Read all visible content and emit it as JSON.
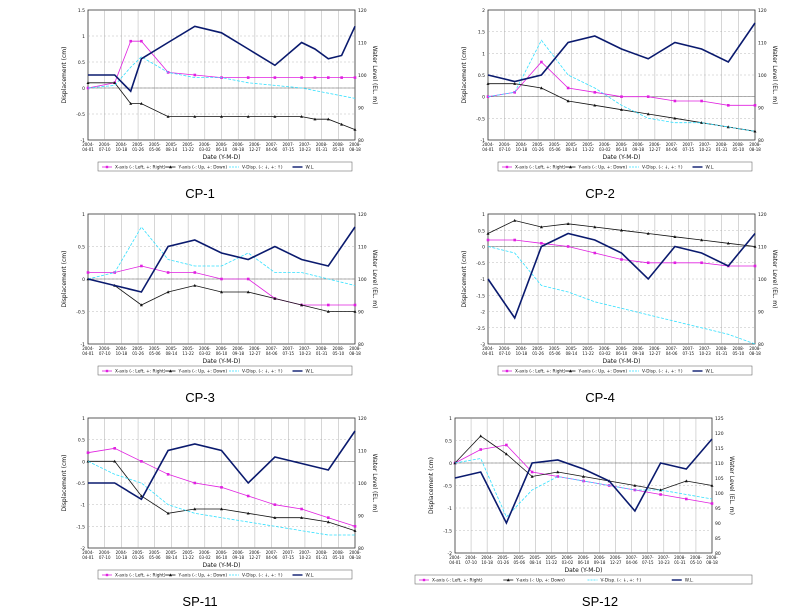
{
  "chart_data": [
    {
      "type": "line",
      "title": "CP-1",
      "xlabel": "Date (Y-M-D)",
      "ylabel": "Displacement (cm)",
      "y2label": "Water Level (EL. m)",
      "ylim": [
        -1,
        1.5
      ],
      "yticks": [
        "1.5",
        "1",
        "0.5",
        "0",
        "-0.5",
        "-1"
      ],
      "y2lim": [
        80,
        120
      ],
      "y2ticks": [
        "120",
        "110",
        "100",
        "90",
        "80"
      ],
      "x": [
        0,
        0.1,
        0.16,
        0.2,
        0.3,
        0.4,
        0.5,
        0.6,
        0.7,
        0.8,
        0.85,
        0.9,
        0.95,
        1
      ],
      "legend": [
        "X-axis (-: Left, +: Right)",
        "Y-axis (-: Up, +: Down)",
        "V-Disp. (-: ↓, +: ↑)",
        "W.L."
      ],
      "series": [
        {
          "name": "X-axis (-: Left, +: Right)",
          "axis": "left",
          "values": [
            0,
            0.1,
            0.9,
            0.9,
            0.3,
            0.25,
            0.2,
            0.2,
            0.2,
            0.2,
            0.2,
            0.2,
            0.2,
            0.2
          ]
        },
        {
          "name": "Y-axis (-: Up, +: Down)",
          "axis": "left",
          "values": [
            0.1,
            0.1,
            -0.3,
            -0.3,
            -0.55,
            -0.55,
            -0.55,
            -0.55,
            -0.55,
            -0.55,
            -0.6,
            -0.6,
            -0.7,
            -0.8
          ]
        },
        {
          "name": "V-Disp. (-: ↓, +: ↑)",
          "axis": "left",
          "values": [
            0,
            0.05,
            0.4,
            0.6,
            0.3,
            0.2,
            0.2,
            0.1,
            0.05,
            0,
            -0.05,
            -0.1,
            -0.15,
            -0.2
          ]
        },
        {
          "name": "W.L.",
          "axis": "right",
          "values": [
            100,
            100,
            95,
            105,
            110,
            115,
            113,
            108,
            103,
            110,
            108,
            105,
            106,
            115
          ]
        }
      ]
    },
    {
      "type": "line",
      "title": "CP-2",
      "xlabel": "Date (Y-M-D)",
      "ylabel": "Displacement (cm)",
      "y2label": "Water Level (EL. m)",
      "ylim": [
        -1,
        2
      ],
      "yticks": [
        "2",
        "1.5",
        "1",
        "0.5",
        "0",
        "-0.5",
        "-1"
      ],
      "y2lim": [
        80,
        120
      ],
      "y2ticks": [
        "120",
        "110",
        "100",
        "90",
        "80"
      ],
      "x": [
        0,
        0.1,
        0.2,
        0.3,
        0.4,
        0.5,
        0.6,
        0.7,
        0.8,
        0.9,
        1
      ],
      "legend": [
        "X-axis (-: Left, +: Right)",
        "Y-axis (-: Up, +: Down)",
        "V-Disp. (-: ↓, +: ↑)",
        "W.L."
      ],
      "series": [
        {
          "name": "X-axis (-: Left, +: Right)",
          "axis": "left",
          "values": [
            0,
            0.1,
            0.8,
            0.2,
            0.1,
            0,
            0,
            -0.1,
            -0.1,
            -0.2,
            -0.2
          ]
        },
        {
          "name": "Y-axis (-: Up, +: Down)",
          "axis": "left",
          "values": [
            0.3,
            0.3,
            0.2,
            -0.1,
            -0.2,
            -0.3,
            -0.4,
            -0.5,
            -0.6,
            -0.7,
            -0.8
          ]
        },
        {
          "name": "V-Disp. (-: ↓, +: ↑)",
          "axis": "left",
          "values": [
            0,
            0.1,
            1.3,
            0.5,
            0.2,
            -0.2,
            -0.5,
            -0.6,
            -0.6,
            -0.7,
            -0.8
          ]
        },
        {
          "name": "W.L.",
          "axis": "right",
          "values": [
            100,
            98,
            100,
            110,
            112,
            108,
            105,
            110,
            108,
            104,
            116
          ]
        }
      ]
    },
    {
      "type": "line",
      "title": "CP-3",
      "xlabel": "Date (Y-M-D)",
      "ylabel": "Displacement (cm)",
      "y2label": "Water Level (EL. m)",
      "ylim": [
        -1,
        1
      ],
      "yticks": [
        "1",
        "0.5",
        "0",
        "-0.5",
        "-1"
      ],
      "y2lim": [
        80,
        120
      ],
      "y2ticks": [
        "120",
        "110",
        "100",
        "90",
        "80"
      ],
      "x": [
        0,
        0.1,
        0.2,
        0.3,
        0.4,
        0.5,
        0.6,
        0.7,
        0.8,
        0.9,
        1
      ],
      "legend": [
        "X-axis (-: Left, +: Right)",
        "Y-axis (-: Up, +: Down)",
        "V-Disp. (-: ↓, +: ↑)",
        "W.L."
      ],
      "series": [
        {
          "name": "X-axis (-: Left, +: Right)",
          "axis": "left",
          "values": [
            0.1,
            0.1,
            0.2,
            0.1,
            0.1,
            0,
            0,
            -0.3,
            -0.4,
            -0.4,
            -0.4
          ]
        },
        {
          "name": "Y-axis (-: Up, +: Down)",
          "axis": "left",
          "values": [
            0,
            -0.1,
            -0.4,
            -0.2,
            -0.1,
            -0.2,
            -0.2,
            -0.3,
            -0.4,
            -0.5,
            -0.5
          ]
        },
        {
          "name": "V-Disp. (-: ↓, +: ↑)",
          "axis": "left",
          "values": [
            0,
            0.1,
            0.8,
            0.3,
            0.2,
            0.2,
            0.4,
            0.1,
            0.1,
            0,
            -0.1
          ]
        },
        {
          "name": "W.L.",
          "axis": "right",
          "values": [
            100,
            98,
            96,
            110,
            112,
            108,
            106,
            110,
            106,
            104,
            116
          ]
        }
      ]
    },
    {
      "type": "line",
      "title": "CP-4",
      "xlabel": "Date (Y-M-D)",
      "ylabel": "Displacement (cm)",
      "y2label": "Water Level (EL. m)",
      "ylim": [
        -3,
        1
      ],
      "yticks": [
        "1",
        "0.5",
        "0",
        "-0.5",
        "-1",
        "-1.5",
        "-2",
        "-2.5",
        "-3"
      ],
      "y2lim": [
        80,
        120
      ],
      "y2ticks": [
        "120",
        "110",
        "100",
        "90",
        "80"
      ],
      "x": [
        0,
        0.1,
        0.2,
        0.3,
        0.4,
        0.5,
        0.6,
        0.7,
        0.8,
        0.9,
        1
      ],
      "legend": [
        "X-axis (-: Left, +: Right)",
        "Y-axis (-: Up, +: Down)",
        "V-Disp. (-: ↓, +: ↑)",
        "W.L."
      ],
      "series": [
        {
          "name": "X-axis (-: Left, +: Right)",
          "axis": "left",
          "values": [
            0.2,
            0.2,
            0.1,
            0,
            -0.2,
            -0.4,
            -0.5,
            -0.5,
            -0.5,
            -0.6,
            -0.6
          ]
        },
        {
          "name": "Y-axis (-: Up, +: Down)",
          "axis": "left",
          "values": [
            0.4,
            0.8,
            0.6,
            0.7,
            0.6,
            0.5,
            0.4,
            0.3,
            0.2,
            0.1,
            0
          ]
        },
        {
          "name": "V-Disp. (-: ↓, +: ↑)",
          "axis": "left",
          "values": [
            0,
            -0.2,
            -1.2,
            -1.4,
            -1.7,
            -1.9,
            -2.1,
            -2.3,
            -2.5,
            -2.7,
            -3
          ]
        },
        {
          "name": "W.L.",
          "axis": "right",
          "values": [
            100,
            88,
            110,
            114,
            112,
            108,
            100,
            110,
            108,
            104,
            114
          ]
        }
      ]
    },
    {
      "type": "line",
      "title": "SP-11",
      "xlabel": "Date (Y-M-D)",
      "ylabel": "Displacement (cm)",
      "y2label": "Water Level (EL. m)",
      "ylim": [
        -2,
        1
      ],
      "yticks": [
        "1",
        "0.5",
        "0",
        "-0.5",
        "-1",
        "-1.5",
        "-2"
      ],
      "y2lim": [
        80,
        120
      ],
      "y2ticks": [
        "120",
        "110",
        "100",
        "90",
        "80"
      ],
      "x": [
        0,
        0.1,
        0.2,
        0.3,
        0.4,
        0.5,
        0.6,
        0.7,
        0.8,
        0.9,
        1
      ],
      "legend": [
        "X-axis (-: Left, +: Right)",
        "Y-axis (-: Up, +: Down)",
        "V-Disp. (-: ↓, +: ↑)",
        "W.L."
      ],
      "series": [
        {
          "name": "X-axis (-: Left, +: Right)",
          "axis": "left",
          "values": [
            0.2,
            0.3,
            0,
            -0.3,
            -0.5,
            -0.6,
            -0.8,
            -1.0,
            -1.1,
            -1.3,
            -1.5
          ]
        },
        {
          "name": "Y-axis (-: Up, +: Down)",
          "axis": "left",
          "values": [
            0,
            0,
            -0.8,
            -1.2,
            -1.1,
            -1.1,
            -1.2,
            -1.3,
            -1.3,
            -1.4,
            -1.6
          ]
        },
        {
          "name": "V-Disp. (-: ↓, +: ↑)",
          "axis": "left",
          "values": [
            0,
            -0.3,
            -0.5,
            -1.0,
            -1.2,
            -1.3,
            -1.4,
            -1.5,
            -1.6,
            -1.7,
            -1.7
          ]
        },
        {
          "name": "W.L.",
          "axis": "right",
          "values": [
            100,
            100,
            95,
            110,
            112,
            110,
            100,
            108,
            106,
            104,
            116
          ]
        }
      ]
    },
    {
      "type": "line",
      "title": "SP-12",
      "xlabel": "Date (Y-M-D)",
      "ylabel": "Displacement (cm)",
      "y2label": "Water Level (EL. m)",
      "ylim": [
        -2,
        1
      ],
      "yticks": [
        "1",
        "0.5",
        "0",
        "-0.5",
        "-1",
        "-1.5",
        "-2"
      ],
      "y2lim": [
        80,
        125
      ],
      "y2ticks": [
        "125",
        "120",
        "115",
        "110",
        "105",
        "100",
        "95",
        "90",
        "85",
        "80"
      ],
      "x": [
        0,
        0.1,
        0.2,
        0.3,
        0.4,
        0.5,
        0.6,
        0.7,
        0.8,
        0.9,
        1
      ],
      "legend": [
        "X-axis (-: Left, +: Right)",
        "Y-axis (-: Up, +: Down)",
        "V-Disp. (-: ↓, +: ↑)",
        "W.L."
      ],
      "series": [
        {
          "name": "X-axis (-: Left, +: Right)",
          "axis": "left",
          "values": [
            0,
            0.3,
            0.4,
            -0.2,
            -0.3,
            -0.4,
            -0.5,
            -0.6,
            -0.7,
            -0.8,
            -0.9
          ]
        },
        {
          "name": "Y-axis (-: Up, +: Down)",
          "axis": "left",
          "values": [
            0,
            0.6,
            0.2,
            -0.3,
            -0.2,
            -0.3,
            -0.4,
            -0.5,
            -0.6,
            -0.4,
            -0.5
          ]
        },
        {
          "name": "V-Disp. (-: ↓, +: ↑)",
          "axis": "left",
          "values": [
            0,
            0.1,
            -1.2,
            -0.6,
            -0.3,
            -0.4,
            -0.5,
            -0.6,
            -0.6,
            -0.7,
            -0.8
          ]
        },
        {
          "name": "W.L.",
          "axis": "right",
          "values": [
            105,
            107,
            90,
            110,
            111,
            108,
            104,
            94,
            110,
            108,
            118
          ]
        }
      ]
    }
  ],
  "date_ticks_left": [
    "2004-04-01",
    "2004-07-10",
    "2004-10-18",
    "2005-01-26",
    "2005-05-06",
    "2005-08-14",
    "2005-11-22",
    "2006-03-02",
    "2006-06-10",
    "2006-09-18",
    "2006-12-27",
    "2007-04-06",
    "2007-07-15",
    "2007-10-23",
    "2008-01-31",
    "2008-05-10",
    "2008-08-18"
  ],
  "date_ticks_right": [
    "2004-04-01",
    "2004-07-10",
    "2004-10-18",
    "2005-01-26",
    "2005-05-06",
    "2005-08-14",
    "2005-11-22",
    "2006-03-02",
    "2006-06-10",
    "2006-09-18",
    "2006-12-27",
    "2007-04-06",
    "2007-07-15",
    "2007-10-23",
    "2008-01-31",
    "2008-05-10",
    "2008-08-18"
  ],
  "colors": {
    "x_axis": "#e020e0",
    "y_axis": "#111111",
    "v_disp": "#33e0ff",
    "wl": "#0a1a6e"
  }
}
